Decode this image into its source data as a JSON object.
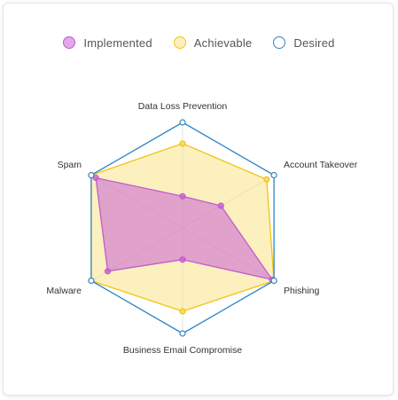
{
  "colors": {
    "implemented": "#c05ccf",
    "implemented_fill": "rgba(201,98,214,0.55)",
    "achievable": "#f1c40f",
    "achievable_fill": "rgba(248,217,96,0.40)",
    "desired": "#2e86c9"
  },
  "chart_data": {
    "type": "radar",
    "axes": [
      "Data Loss Prevention",
      "Account Takeover",
      "Phishing",
      "Business Email Compromise",
      "Malware",
      "Spam"
    ],
    "range": [
      0,
      1
    ],
    "grid": true,
    "legend_position": "top-center",
    "series": [
      {
        "name": "Implemented",
        "color_key": "implemented",
        "values": [
          0.3,
          0.42,
          0.98,
          0.3,
          0.82,
          0.95
        ]
      },
      {
        "name": "Achievable",
        "color_key": "achievable",
        "values": [
          0.8,
          0.92,
          1.0,
          0.79,
          1.0,
          1.0
        ]
      },
      {
        "name": "Desired",
        "color_key": "desired",
        "values": [
          1.0,
          1.0,
          1.0,
          1.0,
          1.0,
          1.0
        ]
      }
    ]
  }
}
